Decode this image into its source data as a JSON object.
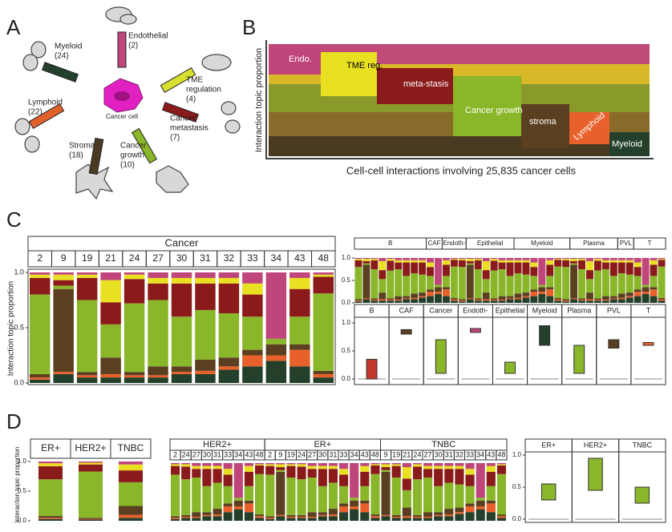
{
  "letters": [
    "A",
    "B",
    "C",
    "D"
  ],
  "diagram": {
    "center": "Cancer cell",
    "topics": [
      {
        "lines": [
          "Endothelial",
          "(2)"
        ],
        "color": "#c0457a"
      },
      {
        "lines": [
          "TME",
          "regulation",
          "(4)"
        ],
        "color": "#d8e030"
      },
      {
        "lines": [
          "Cancer",
          "metastasis",
          "(7)"
        ],
        "color": "#8b1a1a"
      },
      {
        "lines": [
          "Cancer",
          "growth",
          "(10)"
        ],
        "color": "#8ab62a"
      },
      {
        "lines": [
          "Stroma",
          "(18)"
        ],
        "color": "#4a3a22"
      },
      {
        "lines": [
          "Lymphoid",
          "(22)"
        ],
        "color": "#e0602a"
      },
      {
        "lines": [
          "Myeloid",
          "(24)"
        ],
        "color": "#24402a"
      }
    ]
  },
  "heatmap": {
    "ylabel": "Interaction topic proportion",
    "xlabel": "Cell-cell interactions involving 25,835 cancer cells"
  },
  "chart_data": [
    {
      "type": "bar",
      "stacked": true,
      "title": "Cancer",
      "ylabel": "Interaction topic proportion",
      "categories": [
        "2",
        "9",
        "19",
        "21",
        "24",
        "27",
        "30",
        "31",
        "32",
        "33",
        "34",
        "43",
        "48"
      ],
      "ylim": [
        0,
        1
      ],
      "yticks": [
        {
          "value": 1,
          "label": "1.0"
        },
        {
          "value": 0.5,
          "label": "0.5"
        },
        {
          "value": 0,
          "label": "0.0"
        }
      ],
      "series": [
        {
          "name": "Myeloid",
          "color": "#24402a",
          "values": [
            0.03,
            0.08,
            0.05,
            0.05,
            0.05,
            0.05,
            0.08,
            0.08,
            0.12,
            0.15,
            0.2,
            0.15,
            0.05
          ]
        },
        {
          "name": "Lymphoid",
          "color": "#e8602a",
          "values": [
            0.02,
            0.02,
            0.02,
            0.03,
            0.02,
            0.02,
            0.02,
            0.03,
            0.03,
            0.1,
            0.05,
            0.15,
            0.03
          ]
        },
        {
          "name": "stroma",
          "color": "#5a4020",
          "values": [
            0.03,
            0.75,
            0.03,
            0.15,
            0.03,
            0.08,
            0.05,
            0.1,
            0.08,
            0.05,
            0.1,
            0.05,
            0.03
          ]
        },
        {
          "name": "Cancer growth",
          "color": "#8ab62a",
          "values": [
            0.72,
            0.03,
            0.65,
            0.3,
            0.62,
            0.6,
            0.45,
            0.45,
            0.4,
            0.3,
            0.05,
            0.25,
            0.7
          ]
        },
        {
          "name": "meta-stasis",
          "color": "#8b1a1a",
          "values": [
            0.15,
            0.05,
            0.2,
            0.2,
            0.22,
            0.15,
            0.3,
            0.24,
            0.27,
            0.2,
            0.0,
            0.25,
            0.15
          ]
        },
        {
          "name": "TME reg.",
          "color": "#e8e020",
          "values": [
            0.03,
            0.05,
            0.03,
            0.2,
            0.04,
            0.05,
            0.05,
            0.05,
            0.05,
            0.1,
            0.0,
            0.1,
            0.02
          ]
        },
        {
          "name": "Endo.",
          "color": "#c0457a",
          "values": [
            0.02,
            0.02,
            0.02,
            0.07,
            0.02,
            0.05,
            0.05,
            0.05,
            0.05,
            0.1,
            0.6,
            0.05,
            0.02
          ]
        }
      ]
    },
    {
      "type": "bar",
      "stacked": true,
      "groups": [
        {
          "name": "B",
          "n": 9
        },
        {
          "name": "CAF",
          "n": 2
        },
        {
          "name": "Endoth-",
          "n": 3
        },
        {
          "name": "Epithelial",
          "n": 6
        },
        {
          "name": "Myeloid",
          "n": 7
        },
        {
          "name": "Plasma",
          "n": 6
        },
        {
          "name": "PVL",
          "n": 2
        },
        {
          "name": "T",
          "n": 4
        }
      ],
      "yticks": [
        {
          "value": 1,
          "label": "1.0"
        },
        {
          "value": 0.5,
          "label": "0.5"
        },
        {
          "value": 0,
          "label": "0.0"
        }
      ]
    },
    {
      "type": "box",
      "ylim": [
        -0.1,
        1.1
      ],
      "yticks": [
        {
          "value": 1,
          "label": "1.0"
        },
        {
          "value": 0.5,
          "label": "0.5"
        },
        {
          "value": 0,
          "label": "0.0"
        }
      ],
      "categories": [
        "B",
        "CAF",
        "Cancer",
        "Endoth-",
        "Epithelial",
        "Myeloid",
        "Plasma",
        "PVL",
        "T"
      ],
      "boxes": [
        {
          "color": "#c0392b",
          "q1": 0.0,
          "q3": 0.35
        },
        {
          "color": "#5a4020",
          "q1": 0.8,
          "q3": 0.88
        },
        {
          "color": "#8ab62a",
          "q1": 0.1,
          "q3": 0.7
        },
        {
          "color": "#c0457a",
          "q1": 0.83,
          "q3": 0.9
        },
        {
          "color": "#8ab62a",
          "q1": 0.1,
          "q3": 0.3
        },
        {
          "color": "#24402a",
          "q1": 0.6,
          "q3": 0.95
        },
        {
          "color": "#8ab62a",
          "q1": 0.1,
          "q3": 0.6
        },
        {
          "color": "#5a4020",
          "q1": 0.55,
          "q3": 0.7
        },
        {
          "color": "#e8602a",
          "q1": 0.6,
          "q3": 0.65
        }
      ]
    },
    {
      "type": "bar",
      "stacked": true,
      "categories": [
        "ER+",
        "HER2+",
        "TNBC"
      ],
      "ylabel": "Interaction topic proportion",
      "ylim": [
        0,
        1
      ],
      "yticks": [
        {
          "value": 1,
          "label": "1.0"
        },
        {
          "value": 0.5,
          "label": "0.5"
        },
        {
          "value": 0,
          "label": "0.0"
        }
      ],
      "series": [
        {
          "color": "#24402a",
          "values": [
            0.03,
            0.02,
            0.05
          ]
        },
        {
          "color": "#e8602a",
          "values": [
            0.02,
            0.01,
            0.05
          ]
        },
        {
          "color": "#5a4020",
          "values": [
            0.03,
            0.02,
            0.15
          ]
        },
        {
          "color": "#8ab62a",
          "values": [
            0.62,
            0.78,
            0.4
          ]
        },
        {
          "color": "#8b1a1a",
          "values": [
            0.22,
            0.12,
            0.2
          ]
        },
        {
          "color": "#e8e020",
          "values": [
            0.05,
            0.03,
            0.1
          ]
        },
        {
          "color": "#c0457a",
          "values": [
            0.03,
            0.02,
            0.05
          ]
        }
      ]
    },
    {
      "type": "bar",
      "stacked": true,
      "groups": [
        {
          "name": "HER2+",
          "categories": [
            "2",
            "24",
            "27",
            "30",
            "31",
            "33",
            "34",
            "43",
            "48"
          ]
        },
        {
          "name": "ER+",
          "categories": [
            "2",
            "9",
            "19",
            "24",
            "27",
            "30",
            "31",
            "33",
            "34",
            "43",
            "48"
          ]
        },
        {
          "name": "TNBC",
          "categories": [
            "9",
            "19",
            "21",
            "24",
            "27",
            "30",
            "31",
            "32",
            "33",
            "34",
            "43",
            "48"
          ]
        }
      ]
    },
    {
      "type": "box",
      "ylim": [
        -0.05,
        1.05
      ],
      "yticks": [
        {
          "value": 1,
          "label": "1.0"
        },
        {
          "value": 0.5,
          "label": "0.5"
        },
        {
          "value": 0,
          "label": "0.0"
        }
      ],
      "categories": [
        "ER+",
        "HER2+",
        "TNBC"
      ],
      "boxes": [
        {
          "color": "#8ab62a",
          "q1": 0.3,
          "q3": 0.55
        },
        {
          "color": "#8ab62a",
          "q1": 0.45,
          "q3": 0.95
        },
        {
          "color": "#8ab62a",
          "q1": 0.25,
          "q3": 0.5
        }
      ]
    }
  ]
}
